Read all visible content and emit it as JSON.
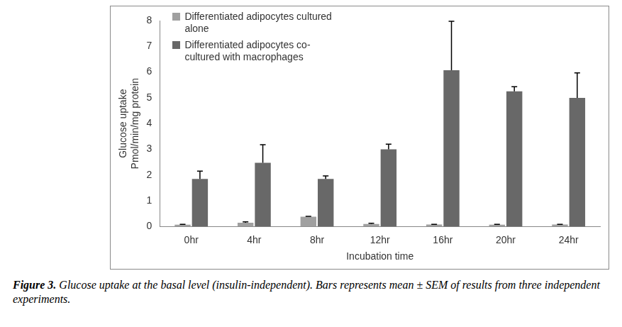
{
  "chart_data": {
    "type": "bar",
    "categories": [
      "0hr",
      "4hr",
      "8hr",
      "12hr",
      "16hr",
      "20hr",
      "24hr"
    ],
    "series": [
      {
        "name": "Differentiated adipocytes cultured alone",
        "color": "#a0a0a0",
        "values": [
          0.07,
          0.15,
          0.38,
          0.1,
          0.08,
          0.07,
          0.08
        ],
        "errors": [
          0.02,
          0.03,
          0.02,
          0.03,
          0.01,
          0.02,
          0.01
        ]
      },
      {
        "name": "Differentiated adipocytes co-cultured with macrophages",
        "color": "#686868",
        "values": [
          1.85,
          2.48,
          1.85,
          3.0,
          6.07,
          5.25,
          5.0
        ],
        "errors": [
          0.3,
          0.7,
          0.12,
          0.2,
          1.9,
          0.18,
          0.97
        ]
      }
    ],
    "x_label": "Incubation time",
    "y_label": [
      "Glucose uptake",
      "Pmol/min/mg protein"
    ],
    "ylim": [
      0,
      8
    ],
    "yticks": [
      0,
      1,
      2,
      3,
      4,
      5,
      6,
      7,
      8
    ],
    "grid": false,
    "legend": "upper left",
    "caption_label": "Figure 3.",
    "caption": "Glucose uptake at the basal level (insulin-independent). Bars represents mean ± SEM of results from three independent experiments."
  }
}
